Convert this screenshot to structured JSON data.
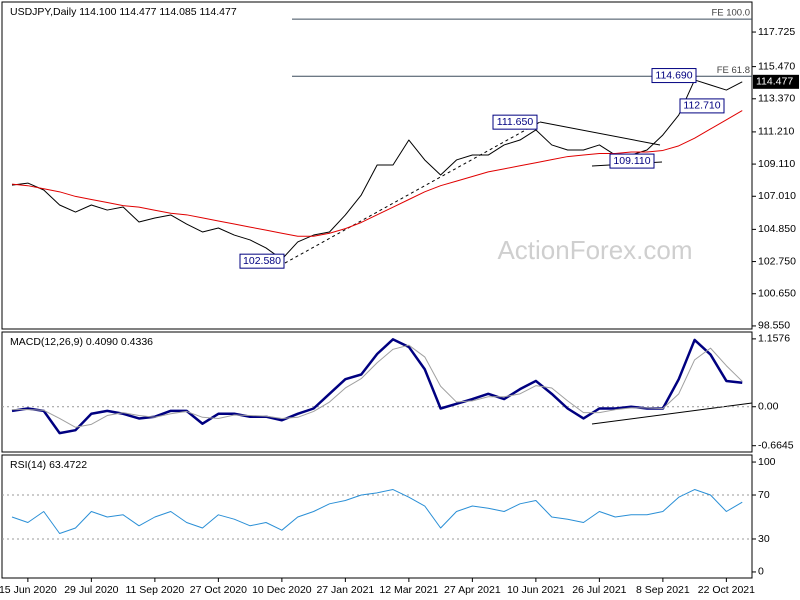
{
  "chart_data": [
    {
      "type": "line",
      "title": "USDJPY,Daily 114.100 114.477 114.085 114.477",
      "watermark": "ActionForex.com",
      "ylim": [
        98.35,
        119.62
      ],
      "yticks": [
        117.725,
        {
          "value": 115.47,
          "label": "115.470"
        },
        {
          "value": 113.37,
          "label": "113.370"
        },
        {
          "value": 111.21,
          "label": "111.210"
        },
        {
          "value": 109.11,
          "label": "109.110"
        },
        {
          "value": 107.01,
          "label": "107.010"
        },
        {
          "value": 104.85,
          "label": "104.850"
        },
        {
          "value": 102.75,
          "label": "102.750"
        },
        {
          "value": 100.65,
          "label": "100.650"
        },
        {
          "value": 98.55,
          "label": "98.550"
        }
      ],
      "series": [
        {
          "color": "#000000",
          "values": [
            107.74,
            107.87,
            107.42,
            106.44,
            105.98,
            106.44,
            106.11,
            106.31,
            105.33,
            105.59,
            105.79,
            105.2,
            104.68,
            104.94,
            104.48,
            104.16,
            103.64,
            102.9,
            104.03,
            104.48,
            104.68,
            105.79,
            107.09,
            109.05,
            109.05,
            110.68,
            109.38,
            108.4,
            109.38,
            109.7,
            109.7,
            110.36,
            110.68,
            111.34,
            110.36,
            110.03,
            110.03,
            110.36,
            109.7,
            109.7,
            110.03,
            111.01,
            112.31,
            114.6,
            114.27,
            113.94,
            114.477
          ]
        },
        {
          "color": "#e00000",
          "values": [
            107.8,
            107.7,
            107.5,
            107.3,
            107.0,
            106.8,
            106.6,
            106.4,
            106.3,
            106.1,
            105.9,
            105.8,
            105.6,
            105.4,
            105.2,
            105.0,
            104.8,
            104.6,
            104.4,
            104.4,
            104.6,
            104.9,
            105.3,
            105.8,
            106.3,
            106.8,
            107.3,
            107.7,
            108.0,
            108.3,
            108.6,
            108.8,
            109.0,
            109.2,
            109.4,
            109.6,
            109.7,
            109.8,
            109.8,
            109.9,
            109.9,
            110.0,
            110.3,
            110.8,
            111.4,
            112.0,
            112.6
          ]
        }
      ],
      "fe_lines": [
        {
          "value": 118.57,
          "label": "FE 100.0"
        },
        {
          "value": 114.84,
          "label": "FE 61.8"
        }
      ],
      "level_labels": [
        {
          "value": 114.69,
          "label": "114.690"
        },
        {
          "value": 111.65,
          "label": "111.650"
        },
        {
          "value": 112.71,
          "label": "112.710"
        },
        {
          "value": 109.11,
          "label": "109.110"
        },
        {
          "value": 102.58,
          "label": "102.580"
        }
      ],
      "last_price": {
        "value": 114.477,
        "label": "114.477"
      }
    },
    {
      "type": "line",
      "title": "MACD(12,26,9) 0.4090 0.4336",
      "ylim": [
        -0.772,
        1.258
      ],
      "yticks": [
        1.1576,
        {
          "value": 0,
          "label": "0.00"
        },
        -0.6645
      ],
      "levels": [
        0
      ],
      "series": [
        {
          "color": "#000080",
          "width": 2.5,
          "values": [
            -0.07,
            -0.03,
            -0.07,
            -0.45,
            -0.4,
            -0.12,
            -0.07,
            -0.12,
            -0.2,
            -0.17,
            -0.07,
            -0.07,
            -0.29,
            -0.12,
            -0.12,
            -0.17,
            -0.17,
            -0.23,
            -0.12,
            -0.03,
            0.22,
            0.47,
            0.55,
            0.9,
            1.15,
            1.02,
            0.64,
            -0.03,
            0.05,
            0.13,
            0.22,
            0.13,
            0.3,
            0.44,
            0.22,
            -0.03,
            -0.2,
            -0.03,
            -0.03,
            0,
            -0.03,
            -0.03,
            0.47,
            1.14,
            0.89,
            0.44,
            0.409
          ]
        },
        {
          "color": "#a0a0a0",
          "width": 1,
          "values": [
            -0.05,
            -0.05,
            -0.06,
            -0.2,
            -0.35,
            -0.3,
            -0.15,
            -0.1,
            -0.15,
            -0.18,
            -0.12,
            -0.08,
            -0.18,
            -0.2,
            -0.14,
            -0.15,
            -0.16,
            -0.2,
            -0.18,
            -0.08,
            0.08,
            0.32,
            0.48,
            0.75,
            0.98,
            1.05,
            0.85,
            0.35,
            0.08,
            0.1,
            0.17,
            0.17,
            0.22,
            0.36,
            0.32,
            0.1,
            -0.1,
            -0.1,
            -0.05,
            -0.02,
            -0.02,
            -0.03,
            0.22,
            0.8,
            1.0,
            0.7,
            0.4336
          ]
        }
      ]
    },
    {
      "type": "line",
      "title": "RSI(14) 63.4722",
      "ylim": [
        -5.5,
        105.5
      ],
      "yticks": [
        100,
        70,
        30,
        0
      ],
      "levels": [
        70,
        30
      ],
      "categories": [
        null,
        "15 Jun 2020",
        null,
        null,
        null,
        "29 Jul 2020",
        null,
        null,
        null,
        "11 Sep 2020",
        null,
        null,
        null,
        "27 Oct 2020",
        null,
        null,
        null,
        "10 Dec 2020",
        null,
        null,
        null,
        "27 Jan 2021",
        null,
        null,
        null,
        "12 Mar 2021",
        null,
        null,
        null,
        "27 Apr 2021",
        null,
        null,
        null,
        "10 Jun 2021",
        null,
        null,
        null,
        "26 Jul 2021",
        null,
        null,
        null,
        "8 Sep 2021",
        null,
        null,
        null,
        "22 Oct 2021",
        null
      ],
      "series": [
        {
          "color": "#2a8fd6",
          "width": 1,
          "values": [
            50,
            45,
            55,
            35,
            40,
            55,
            50,
            52,
            42,
            50,
            55,
            45,
            40,
            52,
            48,
            42,
            45,
            38,
            50,
            55,
            62,
            65,
            70,
            72,
            75,
            68,
            60,
            40,
            55,
            60,
            58,
            55,
            62,
            65,
            50,
            48,
            45,
            55,
            50,
            52,
            52,
            55,
            68,
            75,
            70,
            55,
            63.4722
          ]
        }
      ]
    }
  ]
}
